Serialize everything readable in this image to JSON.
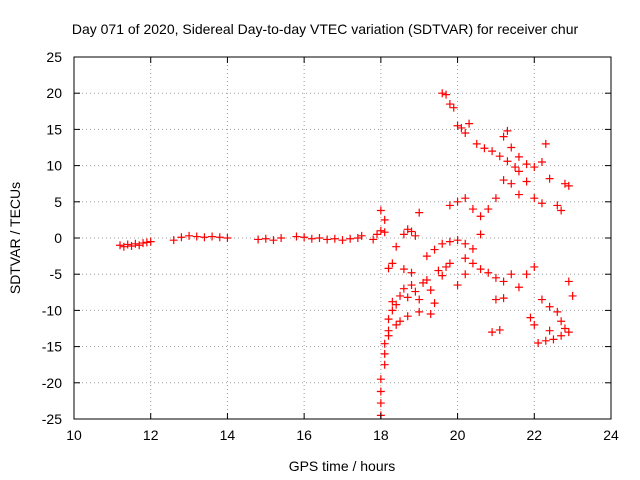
{
  "chart_data": {
    "type": "scatter",
    "title": "Day 071 of 2020, Sidereal Day-to-day VTEC variation (SDTVAR) for receiver chur",
    "xlabel": "GPS time / hours",
    "ylabel": "SDTVAR / TECUs",
    "xlim": [
      10,
      24
    ],
    "ylim": [
      -25,
      25
    ],
    "xticks": [
      10,
      12,
      14,
      16,
      18,
      20,
      22,
      24
    ],
    "yticks": [
      -25,
      -20,
      -15,
      -10,
      -5,
      0,
      5,
      10,
      15,
      20,
      25
    ],
    "xtick_labels": [
      "10",
      "12",
      "14",
      "16",
      "18",
      "20",
      "22",
      "24"
    ],
    "ytick_labels": [
      "-25",
      "-20",
      "-15",
      "-10",
      "-5",
      "0",
      "5",
      "10",
      "15",
      "20",
      "25"
    ],
    "grid": true,
    "marker": "+",
    "color": "#ff0000",
    "series": [
      {
        "name": "SDTVAR",
        "points": [
          [
            11.2,
            -1.0
          ],
          [
            11.3,
            -1.2
          ],
          [
            11.4,
            -0.9
          ],
          [
            11.5,
            -1.1
          ],
          [
            11.6,
            -0.8
          ],
          [
            11.7,
            -1.0
          ],
          [
            11.8,
            -0.7
          ],
          [
            11.9,
            -0.6
          ],
          [
            12.0,
            -0.5
          ],
          [
            12.6,
            -0.3
          ],
          [
            12.8,
            0.1
          ],
          [
            13.0,
            0.3
          ],
          [
            13.2,
            0.2
          ],
          [
            13.4,
            0.1
          ],
          [
            13.6,
            0.2
          ],
          [
            13.8,
            0.1
          ],
          [
            14.0,
            0.0
          ],
          [
            14.8,
            -0.2
          ],
          [
            15.0,
            -0.1
          ],
          [
            15.2,
            -0.3
          ],
          [
            15.4,
            0.0
          ],
          [
            15.8,
            0.2
          ],
          [
            16.0,
            0.1
          ],
          [
            16.2,
            -0.1
          ],
          [
            16.4,
            0.0
          ],
          [
            16.6,
            -0.2
          ],
          [
            16.8,
            -0.1
          ],
          [
            17.0,
            -0.3
          ],
          [
            17.2,
            -0.1
          ],
          [
            17.4,
            0.0
          ],
          [
            17.5,
            0.3
          ],
          [
            17.8,
            -0.2
          ],
          [
            17.9,
            0.5
          ],
          [
            18.0,
            1.0
          ],
          [
            18.1,
            0.8
          ],
          [
            18.0,
            3.8
          ],
          [
            18.1,
            2.5
          ],
          [
            18.2,
            -4.2
          ],
          [
            18.3,
            -3.5
          ],
          [
            18.4,
            -1.2
          ],
          [
            18.6,
            0.5
          ],
          [
            18.7,
            1.2
          ],
          [
            18.8,
            0.9
          ],
          [
            18.9,
            0.3
          ],
          [
            19.0,
            3.5
          ],
          [
            19.2,
            -2.5
          ],
          [
            19.4,
            -1.6
          ],
          [
            19.6,
            -0.8
          ],
          [
            19.8,
            -0.5
          ],
          [
            20.0,
            -0.3
          ],
          [
            20.2,
            -0.8
          ],
          [
            20.4,
            -1.5
          ],
          [
            20.6,
            0.5
          ],
          [
            19.6,
            20.0
          ],
          [
            19.7,
            19.8
          ],
          [
            19.8,
            18.5
          ],
          [
            19.9,
            18.0
          ],
          [
            20.0,
            15.5
          ],
          [
            20.1,
            15.2
          ],
          [
            20.2,
            14.5
          ],
          [
            20.3,
            15.8
          ],
          [
            20.5,
            13.0
          ],
          [
            20.7,
            12.4
          ],
          [
            20.9,
            12.0
          ],
          [
            21.1,
            11.3
          ],
          [
            21.3,
            10.6
          ],
          [
            21.5,
            9.8
          ],
          [
            21.6,
            9.2
          ],
          [
            21.2,
            14.0
          ],
          [
            21.3,
            14.8
          ],
          [
            21.4,
            12.5
          ],
          [
            21.6,
            11.2
          ],
          [
            21.8,
            10.2
          ],
          [
            22.0,
            9.8
          ],
          [
            22.2,
            10.5
          ],
          [
            22.3,
            13.0
          ],
          [
            22.4,
            8.2
          ],
          [
            22.6,
            4.5
          ],
          [
            22.7,
            3.8
          ],
          [
            22.8,
            7.5
          ],
          [
            22.9,
            7.2
          ],
          [
            19.8,
            4.5
          ],
          [
            20.0,
            5.0
          ],
          [
            20.2,
            5.5
          ],
          [
            20.4,
            4.0
          ],
          [
            20.6,
            3.0
          ],
          [
            20.8,
            4.0
          ],
          [
            21.0,
            5.5
          ],
          [
            21.2,
            8.0
          ],
          [
            21.4,
            7.5
          ],
          [
            21.6,
            6.0
          ],
          [
            21.8,
            7.8
          ],
          [
            22.0,
            5.5
          ],
          [
            22.2,
            4.8
          ],
          [
            20.2,
            -2.8
          ],
          [
            20.4,
            -3.5
          ],
          [
            20.6,
            -4.3
          ],
          [
            20.8,
            -4.8
          ],
          [
            21.0,
            -5.5
          ],
          [
            21.2,
            -6.0
          ],
          [
            21.4,
            -5.0
          ],
          [
            21.6,
            -6.8
          ],
          [
            21.8,
            -5.0
          ],
          [
            22.0,
            -4.0
          ],
          [
            22.2,
            -8.5
          ],
          [
            22.4,
            -9.5
          ],
          [
            22.6,
            -10.2
          ],
          [
            22.7,
            -11.5
          ],
          [
            22.8,
            -12.5
          ],
          [
            22.9,
            -6.0
          ],
          [
            21.0,
            -8.5
          ],
          [
            21.2,
            -8.3
          ],
          [
            20.9,
            -13.0
          ],
          [
            21.1,
            -12.7
          ],
          [
            22.1,
            -14.5
          ],
          [
            22.3,
            -14.2
          ],
          [
            22.5,
            -14.0
          ],
          [
            22.7,
            -13.5
          ],
          [
            22.9,
            -13.0
          ],
          [
            23.0,
            -8.0
          ],
          [
            22.4,
            -12.8
          ],
          [
            22.0,
            -12.0
          ],
          [
            21.9,
            -11.0
          ],
          [
            18.0,
            -24.5
          ],
          [
            18.0,
            -22.8
          ],
          [
            18.0,
            -21.2
          ],
          [
            18.0,
            -19.5
          ],
          [
            18.1,
            -17.5
          ],
          [
            18.1,
            -16.0
          ],
          [
            18.1,
            -14.6
          ],
          [
            18.2,
            -12.8
          ],
          [
            18.2,
            -11.2
          ],
          [
            18.3,
            -10.0
          ],
          [
            18.3,
            -8.8
          ],
          [
            18.4,
            -9.2
          ],
          [
            18.5,
            -8.0
          ],
          [
            18.6,
            -7.0
          ],
          [
            18.7,
            -8.2
          ],
          [
            18.8,
            -6.5
          ],
          [
            18.9,
            -7.4
          ],
          [
            19.0,
            -8.5
          ],
          [
            19.1,
            -6.2
          ],
          [
            19.2,
            -5.8
          ],
          [
            19.3,
            -7.2
          ],
          [
            19.4,
            -9.0
          ],
          [
            19.5,
            -4.5
          ],
          [
            19.6,
            -5.2
          ],
          [
            19.7,
            -4.0
          ],
          [
            19.8,
            -3.5
          ],
          [
            20.0,
            -6.5
          ],
          [
            20.2,
            -5.0
          ],
          [
            18.5,
            -11.5
          ],
          [
            18.7,
            -10.8
          ],
          [
            19.0,
            -10.2
          ],
          [
            19.3,
            -10.5
          ],
          [
            18.6,
            -4.3
          ],
          [
            18.8,
            -4.8
          ],
          [
            18.4,
            -12.0
          ],
          [
            18.2,
            -13.5
          ]
        ]
      }
    ]
  }
}
